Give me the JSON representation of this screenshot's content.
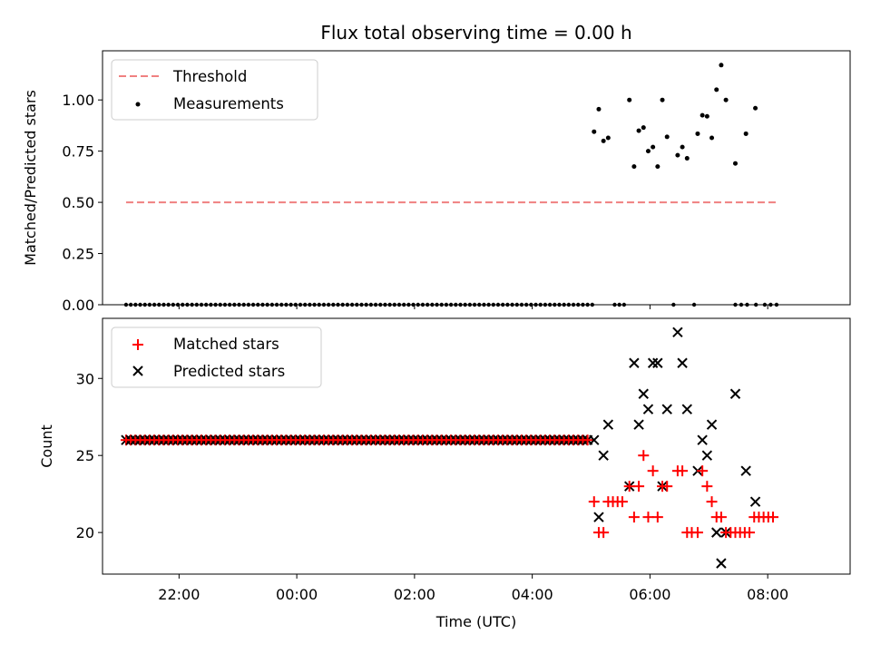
{
  "chart_data": {
    "type": "scatter",
    "title": "Flux total observing time = 0.00 h",
    "xlabel": "Time (UTC)",
    "x_ticks": [
      "22:00",
      "00:00",
      "02:00",
      "04:00",
      "06:00",
      "08:00"
    ],
    "x_tick_hours": [
      22,
      24,
      26,
      28,
      30,
      32
    ],
    "xlim_hours": [
      20.7,
      33.4
    ],
    "top": {
      "ylabel": "Matched/Predicted stars",
      "ylim": [
        0,
        1.24
      ],
      "yticks": [
        0.0,
        0.25,
        0.5,
        0.75,
        1.0
      ],
      "ytick_labels": [
        "0.00",
        "0.25",
        "0.50",
        "0.75",
        "1.00"
      ],
      "legend": [
        "Threshold",
        "Measurements"
      ],
      "legend_position": "upper-left",
      "threshold": {
        "name": "Threshold",
        "value": 0.5,
        "x_start": 21.1,
        "x_end": 32.15,
        "color": "#f08080",
        "style": "dashed"
      },
      "zero_points_x": [
        21.1,
        21.18,
        21.26,
        21.34,
        21.42,
        21.5,
        21.58,
        21.66,
        21.74,
        21.82,
        21.9,
        21.98,
        22.06,
        22.14,
        22.22,
        22.3,
        22.38,
        22.46,
        22.54,
        22.62,
        22.7,
        22.78,
        22.86,
        22.94,
        23.02,
        23.1,
        23.18,
        23.26,
        23.34,
        23.42,
        23.5,
        23.58,
        23.66,
        23.74,
        23.82,
        23.9,
        23.98,
        24.06,
        24.14,
        24.22,
        24.3,
        24.38,
        24.46,
        24.54,
        24.62,
        24.7,
        24.78,
        24.86,
        24.94,
        25.02,
        25.1,
        25.18,
        25.26,
        25.34,
        25.42,
        25.5,
        25.58,
        25.66,
        25.74,
        25.82,
        25.9,
        25.98,
        26.06,
        26.14,
        26.22,
        26.3,
        26.38,
        26.46,
        26.54,
        26.62,
        26.7,
        26.78,
        26.86,
        26.94,
        27.02,
        27.1,
        27.18,
        27.26,
        27.34,
        27.42,
        27.5,
        27.58,
        27.66,
        27.74,
        27.82,
        27.9,
        27.98,
        28.06,
        28.14,
        28.22,
        28.3,
        28.38,
        28.46,
        28.54,
        28.62,
        28.7,
        28.78,
        28.86,
        28.94,
        29.02,
        29.4,
        29.48,
        29.56,
        30.4,
        30.75,
        31.45,
        31.55,
        31.65,
        31.8,
        31.95,
        32.05,
        32.15
      ],
      "measurements": [
        {
          "x": 29.05,
          "y": 0.845
        },
        {
          "x": 29.13,
          "y": 0.955
        },
        {
          "x": 29.21,
          "y": 0.8
        },
        {
          "x": 29.29,
          "y": 0.815
        },
        {
          "x": 29.65,
          "y": 1.0
        },
        {
          "x": 29.73,
          "y": 0.675
        },
        {
          "x": 29.81,
          "y": 0.85
        },
        {
          "x": 29.89,
          "y": 0.865
        },
        {
          "x": 29.97,
          "y": 0.75
        },
        {
          "x": 30.05,
          "y": 0.77
        },
        {
          "x": 30.13,
          "y": 0.675
        },
        {
          "x": 30.21,
          "y": 1.0
        },
        {
          "x": 30.29,
          "y": 0.82
        },
        {
          "x": 30.47,
          "y": 0.73
        },
        {
          "x": 30.55,
          "y": 0.77
        },
        {
          "x": 30.63,
          "y": 0.715
        },
        {
          "x": 30.81,
          "y": 0.835
        },
        {
          "x": 30.89,
          "y": 0.925
        },
        {
          "x": 30.97,
          "y": 0.92
        },
        {
          "x": 31.05,
          "y": 0.815
        },
        {
          "x": 31.13,
          "y": 1.05
        },
        {
          "x": 31.21,
          "y": 1.17
        },
        {
          "x": 31.29,
          "y": 1.0
        },
        {
          "x": 31.45,
          "y": 0.69
        },
        {
          "x": 31.63,
          "y": 0.835
        },
        {
          "x": 31.79,
          "y": 0.96
        }
      ]
    },
    "bottom": {
      "ylabel": "Count",
      "ylim": [
        17.3,
        33.9
      ],
      "yticks": [
        20,
        25,
        30
      ],
      "ytick_labels": [
        "20",
        "25",
        "30"
      ],
      "legend": [
        "Matched stars",
        "Predicted stars"
      ],
      "legend_position": "upper-left",
      "flat_series_value": 26,
      "flat_series_x_start": 21.1,
      "flat_series_x_end": 29.0,
      "flat_series_step": 0.08,
      "matched": [
        {
          "x": 29.05,
          "y": 22
        },
        {
          "x": 29.13,
          "y": 20
        },
        {
          "x": 29.21,
          "y": 20
        },
        {
          "x": 29.29,
          "y": 22
        },
        {
          "x": 29.37,
          "y": 22
        },
        {
          "x": 29.45,
          "y": 22
        },
        {
          "x": 29.53,
          "y": 22
        },
        {
          "x": 29.65,
          "y": 23
        },
        {
          "x": 29.73,
          "y": 21
        },
        {
          "x": 29.81,
          "y": 23
        },
        {
          "x": 29.89,
          "y": 25
        },
        {
          "x": 29.97,
          "y": 21
        },
        {
          "x": 30.05,
          "y": 24
        },
        {
          "x": 30.13,
          "y": 21
        },
        {
          "x": 30.21,
          "y": 23
        },
        {
          "x": 30.29,
          "y": 23
        },
        {
          "x": 30.47,
          "y": 24
        },
        {
          "x": 30.55,
          "y": 24
        },
        {
          "x": 30.63,
          "y": 20
        },
        {
          "x": 30.71,
          "y": 20
        },
        {
          "x": 30.81,
          "y": 20
        },
        {
          "x": 30.89,
          "y": 24
        },
        {
          "x": 30.97,
          "y": 23
        },
        {
          "x": 31.05,
          "y": 22
        },
        {
          "x": 31.13,
          "y": 21
        },
        {
          "x": 31.21,
          "y": 21
        },
        {
          "x": 31.29,
          "y": 20
        },
        {
          "x": 31.37,
          "y": 20
        },
        {
          "x": 31.45,
          "y": 20
        },
        {
          "x": 31.53,
          "y": 20
        },
        {
          "x": 31.61,
          "y": 20
        },
        {
          "x": 31.69,
          "y": 20
        },
        {
          "x": 31.77,
          "y": 21
        },
        {
          "x": 31.85,
          "y": 21
        },
        {
          "x": 31.93,
          "y": 21
        },
        {
          "x": 32.01,
          "y": 21
        },
        {
          "x": 32.09,
          "y": 21
        }
      ],
      "predicted": [
        {
          "x": 29.05,
          "y": 26
        },
        {
          "x": 29.13,
          "y": 21
        },
        {
          "x": 29.21,
          "y": 25
        },
        {
          "x": 29.29,
          "y": 27
        },
        {
          "x": 29.65,
          "y": 23
        },
        {
          "x": 29.73,
          "y": 31
        },
        {
          "x": 29.81,
          "y": 27
        },
        {
          "x": 29.89,
          "y": 29
        },
        {
          "x": 29.97,
          "y": 28
        },
        {
          "x": 30.05,
          "y": 31
        },
        {
          "x": 30.13,
          "y": 31
        },
        {
          "x": 30.21,
          "y": 23
        },
        {
          "x": 30.29,
          "y": 28
        },
        {
          "x": 30.47,
          "y": 33
        },
        {
          "x": 30.55,
          "y": 31
        },
        {
          "x": 30.63,
          "y": 28
        },
        {
          "x": 30.81,
          "y": 24
        },
        {
          "x": 30.89,
          "y": 26
        },
        {
          "x": 30.97,
          "y": 25
        },
        {
          "x": 31.05,
          "y": 27
        },
        {
          "x": 31.13,
          "y": 20
        },
        {
          "x": 31.21,
          "y": 18
        },
        {
          "x": 31.29,
          "y": 20
        },
        {
          "x": 31.45,
          "y": 29
        },
        {
          "x": 31.63,
          "y": 24
        },
        {
          "x": 31.79,
          "y": 22
        }
      ]
    },
    "colors": {
      "measurements": "#000000",
      "matched": "#ff0000",
      "predicted": "#000000",
      "threshold": "#f08080"
    }
  }
}
